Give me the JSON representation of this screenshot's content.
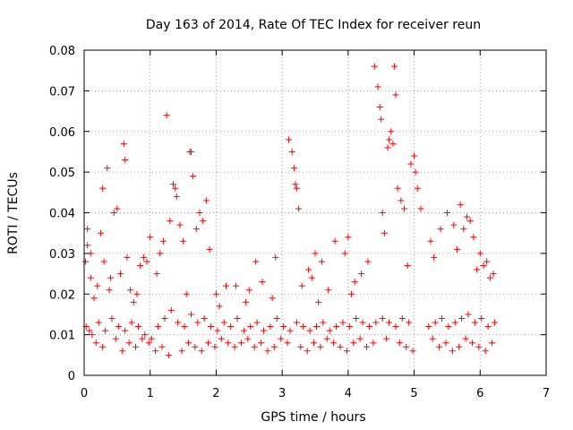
{
  "chart_data": {
    "type": "scatter",
    "title": "Day 163 of 2014, Rate Of TEC Index for receiver reun",
    "xlabel": "GPS time / hours",
    "ylabel": "ROTI / TECUs",
    "xlim": [
      0,
      7
    ],
    "ylim": [
      0,
      0.08
    ],
    "x_ticks": [
      "0",
      "1",
      "2",
      "3",
      "4",
      "5",
      "6",
      "7"
    ],
    "y_ticks": [
      "0",
      "0.01",
      "0.02",
      "0.03",
      "0.04",
      "0.05",
      "0.06",
      "0.07",
      "0.08"
    ],
    "x_tick_values": [
      0,
      1,
      2,
      3,
      4,
      5,
      6,
      7
    ],
    "y_tick_values": [
      0,
      0.01,
      0.02,
      0.03,
      0.04,
      0.05,
      0.06,
      0.07,
      0.08
    ],
    "grid": true,
    "marker": "+",
    "color": "#ff0000",
    "series": [
      {
        "name": "ROTI",
        "x": [
          0.02,
          0.05,
          0.05,
          0.1,
          0.3,
          0.35,
          0.45,
          0.5,
          0.6,
          0.62,
          0.65,
          0.9,
          1.0,
          1.25,
          1.35,
          1.38,
          1.4,
          1.45,
          1.6,
          1.62,
          1.65,
          1.75,
          1.8,
          1.85,
          0.1,
          0.25,
          0.28,
          0.55,
          0.85,
          0.95,
          1.15,
          1.2,
          1.3,
          1.5,
          1.7,
          1.9,
          2.15,
          2.6,
          2.9,
          3.1,
          3.15,
          3.18,
          3.2,
          3.22,
          3.25,
          3.4,
          3.5,
          3.6,
          3.8,
          3.95,
          4.0,
          4.4,
          4.45,
          4.48,
          4.5,
          4.52,
          4.6,
          4.62,
          4.65,
          4.68,
          4.7,
          4.72,
          4.75,
          4.8,
          4.85,
          4.95,
          5.0,
          5.02,
          5.05,
          5.1,
          5.4,
          5.5,
          5.6,
          5.7,
          5.75,
          5.8,
          5.85,
          5.9,
          6.0,
          6.1,
          6.2,
          0.2,
          0.4,
          0.7,
          0.8,
          1.1,
          2.0,
          2.3,
          2.5,
          2.7,
          3.3,
          3.45,
          3.7,
          4.1,
          4.2,
          4.3,
          4.9,
          5.3,
          5.95,
          6.15,
          0.15,
          0.38,
          0.75,
          1.55,
          2.05,
          2.45,
          2.85,
          3.55,
          4.05,
          4.55,
          5.25,
          5.65,
          6.05,
          0.03,
          0.12,
          0.22,
          0.32,
          0.42,
          0.52,
          0.62,
          0.72,
          0.82,
          0.92,
          1.02,
          1.12,
          1.22,
          1.32,
          1.42,
          1.52,
          1.62,
          1.72,
          1.82,
          1.92,
          2.02,
          2.12,
          2.22,
          2.32,
          2.42,
          2.52,
          2.62,
          2.72,
          2.82,
          2.92,
          3.02,
          3.12,
          3.22,
          3.32,
          3.42,
          3.52,
          3.62,
          3.72,
          3.82,
          3.92,
          4.02,
          4.12,
          4.22,
          4.32,
          4.42,
          4.52,
          4.62,
          4.72,
          4.82,
          4.92,
          5.22,
          5.32,
          5.42,
          5.52,
          5.62,
          5.72,
          5.82,
          5.92,
          6.02,
          6.12,
          6.22,
          0.08,
          0.18,
          0.28,
          0.48,
          0.58,
          0.68,
          0.78,
          0.88,
          0.98,
          1.08,
          1.18,
          1.28,
          1.48,
          1.58,
          1.68,
          1.78,
          1.88,
          1.98,
          2.08,
          2.18,
          2.28,
          2.38,
          2.48,
          2.58,
          2.68,
          2.78,
          2.88,
          2.98,
          3.08,
          3.28,
          3.38,
          3.48,
          3.58,
          3.68,
          3.78,
          3.88,
          3.98,
          4.08,
          4.18,
          4.28,
          4.38,
          4.58,
          4.78,
          4.88,
          4.98,
          5.28,
          5.38,
          5.48,
          5.58,
          5.68,
          5.78,
          5.88,
          5.98,
          6.08,
          6.18
        ],
        "y": [
          0.028,
          0.032,
          0.036,
          0.03,
          0.028,
          0.051,
          0.04,
          0.041,
          0.057,
          0.053,
          0.029,
          0.029,
          0.034,
          0.064,
          0.047,
          0.046,
          0.044,
          0.037,
          0.055,
          0.055,
          0.049,
          0.04,
          0.038,
          0.043,
          0.024,
          0.035,
          0.046,
          0.025,
          0.027,
          0.028,
          0.03,
          0.033,
          0.038,
          0.033,
          0.036,
          0.031,
          0.022,
          0.028,
          0.029,
          0.058,
          0.055,
          0.051,
          0.047,
          0.046,
          0.041,
          0.026,
          0.03,
          0.028,
          0.033,
          0.03,
          0.034,
          0.076,
          0.071,
          0.066,
          0.063,
          0.04,
          0.056,
          0.058,
          0.06,
          0.057,
          0.076,
          0.069,
          0.046,
          0.043,
          0.041,
          0.052,
          0.054,
          0.05,
          0.046,
          0.041,
          0.036,
          0.04,
          0.037,
          0.042,
          0.036,
          0.039,
          0.038,
          0.034,
          0.03,
          0.028,
          0.025,
          0.022,
          0.024,
          0.021,
          0.02,
          0.025,
          0.02,
          0.022,
          0.021,
          0.023,
          0.022,
          0.024,
          0.021,
          0.023,
          0.025,
          0.028,
          0.027,
          0.029,
          0.026,
          0.024,
          0.019,
          0.021,
          0.018,
          0.02,
          0.017,
          0.018,
          0.019,
          0.018,
          0.02,
          0.035,
          0.033,
          0.031,
          0.027,
          0.012,
          0.01,
          0.013,
          0.011,
          0.014,
          0.012,
          0.011,
          0.013,
          0.012,
          0.01,
          0.009,
          0.012,
          0.014,
          0.016,
          0.013,
          0.012,
          0.015,
          0.013,
          0.014,
          0.012,
          0.011,
          0.013,
          0.012,
          0.014,
          0.011,
          0.012,
          0.013,
          0.011,
          0.012,
          0.014,
          0.012,
          0.011,
          0.013,
          0.012,
          0.011,
          0.012,
          0.013,
          0.011,
          0.012,
          0.013,
          0.012,
          0.014,
          0.013,
          0.012,
          0.013,
          0.014,
          0.013,
          0.012,
          0.014,
          0.013,
          0.012,
          0.013,
          0.014,
          0.012,
          0.013,
          0.014,
          0.015,
          0.013,
          0.014,
          0.012,
          0.013,
          0.011,
          0.008,
          0.007,
          0.009,
          0.006,
          0.008,
          0.007,
          0.009,
          0.008,
          0.006,
          0.007,
          0.005,
          0.006,
          0.008,
          0.007,
          0.006,
          0.008,
          0.007,
          0.009,
          0.008,
          0.007,
          0.008,
          0.009,
          0.007,
          0.008,
          0.006,
          0.007,
          0.009,
          0.008,
          0.007,
          0.006,
          0.008,
          0.007,
          0.009,
          0.008,
          0.007,
          0.006,
          0.008,
          0.009,
          0.007,
          0.008,
          0.009,
          0.008,
          0.007,
          0.006,
          0.009,
          0.007,
          0.008,
          0.006,
          0.007,
          0.009,
          0.008,
          0.007,
          0.006,
          0.008
        ]
      }
    ]
  }
}
